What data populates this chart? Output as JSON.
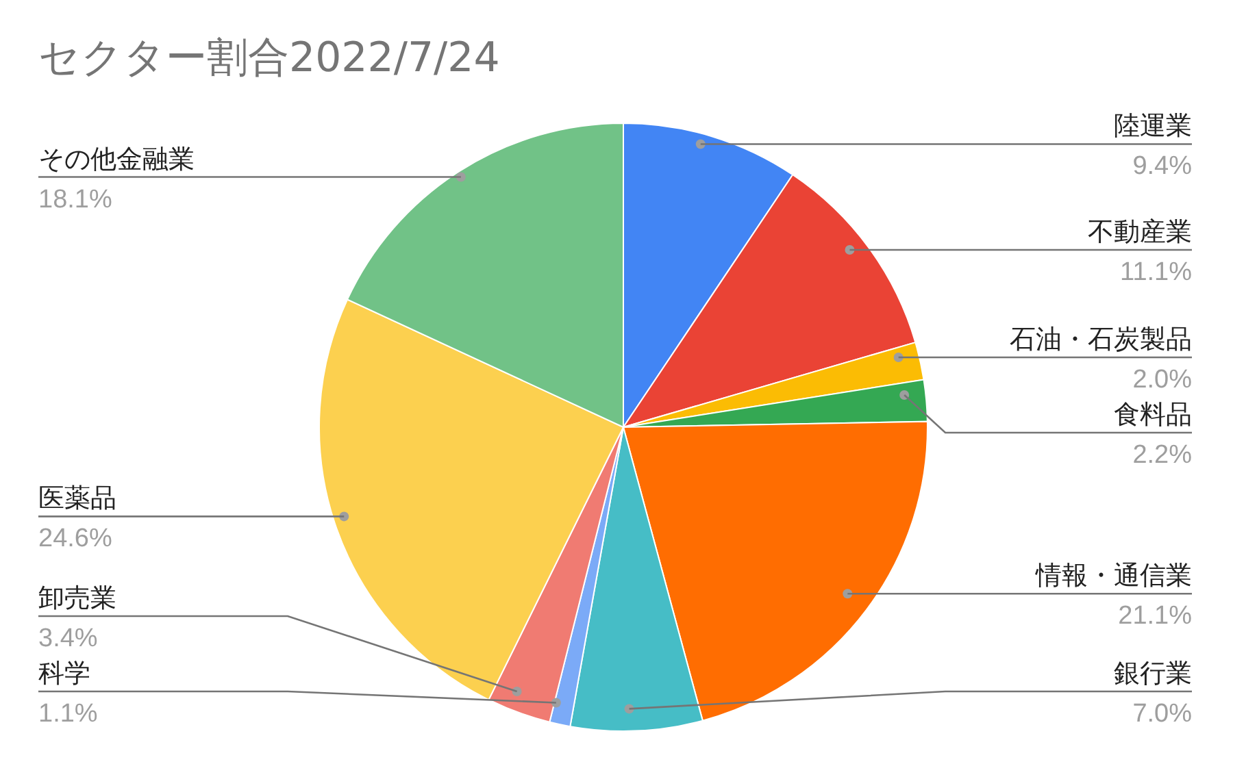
{
  "chart_data": {
    "type": "pie",
    "title": "セクター割合2022/7/24",
    "categories": [
      "陸運業",
      "不動産業",
      "石油・石炭製品",
      "食料品",
      "情報・通信業",
      "銀行業",
      "科学",
      "卸売業",
      "医薬品",
      "その他金融業"
    ],
    "values": [
      9.4,
      11.1,
      2.0,
      2.2,
      21.1,
      7.0,
      1.1,
      3.4,
      24.6,
      18.1
    ],
    "value_labels": [
      "9.4%",
      "11.1%",
      "2.0%",
      "2.2%",
      "21.1%",
      "7.0%",
      "1.1%",
      "3.4%",
      "24.6%",
      "18.1%"
    ],
    "colors": [
      "#4285f4",
      "#ea4335",
      "#fbbc04",
      "#34a853",
      "#ff6d01",
      "#46bdc6",
      "#7baaf7",
      "#f07b72",
      "#fcd04f",
      "#71c287"
    ]
  }
}
